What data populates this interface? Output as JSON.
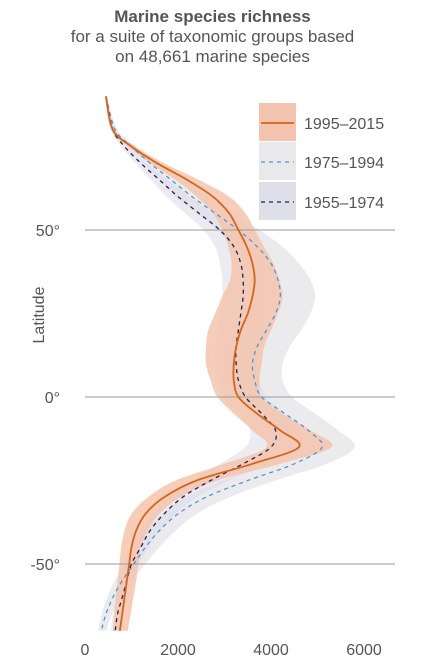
{
  "title": "Marine species richness",
  "subtitle_lines": [
    "for a suite of taxonomic groups based",
    "on 48,661 marine species"
  ],
  "colors": {
    "p1995": "#d4651a",
    "p1995_band": "#f3c4ad",
    "p1975": "#4f95d4",
    "p1975_band": "#e9e9eb",
    "p1955": "#1f2250",
    "p1955_band": "#dcdbe8",
    "grid": "#9a9a9a"
  },
  "chart_data": {
    "type": "line",
    "orientation": "horizontal",
    "title": "Marine species richness",
    "ylabel": "Latitude",
    "xlabel": "",
    "xlim": [
      0,
      6800
    ],
    "ylim": [
      -70,
      90
    ],
    "x_ticks": [
      {
        "value": 0,
        "label": "0"
      },
      {
        "value": 2000,
        "label": "2000"
      },
      {
        "value": 4000,
        "label": "4000"
      },
      {
        "value": 6000,
        "label": "6000"
      }
    ],
    "y_ticks": [
      {
        "value": 50,
        "label": "50°"
      },
      {
        "value": 0,
        "label": "0°"
      },
      {
        "value": -50,
        "label": "-50°"
      }
    ],
    "grid": "horizontal at labelled latitudes",
    "legend": "top-right",
    "series": [
      {
        "name": "1995–2015",
        "style": "solid",
        "latitude": [
          90,
          80,
          75,
          70,
          65,
          60,
          55,
          50,
          45,
          40,
          35,
          30,
          25,
          20,
          15,
          10,
          5,
          0,
          -5,
          -10,
          -15,
          -20,
          -25,
          -30,
          -35,
          -40,
          -45,
          -50,
          -55,
          -60,
          -65,
          -70
        ],
        "richness": [
          450,
          600,
          1000,
          1550,
          2200,
          2750,
          3100,
          3300,
          3480,
          3600,
          3650,
          3600,
          3500,
          3350,
          3250,
          3200,
          3200,
          3300,
          3700,
          4200,
          4600,
          3600,
          2400,
          1700,
          1300,
          1100,
          1000,
          950,
          900,
          850,
          800,
          750
        ],
        "band_low": [
          430,
          560,
          920,
          1400,
          1950,
          2400,
          2750,
          2950,
          3080,
          3150,
          3120,
          2950,
          2800,
          2650,
          2600,
          2600,
          2700,
          2850,
          3200,
          3600,
          3900,
          3000,
          1950,
          1350,
          1000,
          850,
          780,
          740,
          700,
          660,
          630,
          600
        ],
        "band_high": [
          470,
          640,
          1080,
          1700,
          2450,
          3100,
          3450,
          3650,
          3850,
          4050,
          4180,
          4250,
          4150,
          4000,
          3850,
          3800,
          3750,
          3800,
          4250,
          4850,
          5300,
          4200,
          2850,
          2050,
          1600,
          1350,
          1200,
          1150,
          1100,
          1040,
          980,
          920
        ]
      },
      {
        "name": "1975–1994",
        "style": "dashed",
        "latitude": [
          90,
          80,
          75,
          70,
          65,
          60,
          55,
          50,
          45,
          40,
          35,
          30,
          25,
          20,
          15,
          10,
          5,
          0,
          -5,
          -10,
          -15,
          -20,
          -25,
          -30,
          -35,
          -40,
          -45,
          -50,
          -55,
          -60,
          -65,
          -70
        ],
        "richness": [
          450,
          650,
          1000,
          1400,
          1850,
          2300,
          2800,
          3300,
          3700,
          4000,
          4150,
          4200,
          4100,
          3900,
          3700,
          3600,
          3650,
          3800,
          4300,
          4800,
          5100,
          4500,
          3500,
          2600,
          2000,
          1600,
          1300,
          1050,
          800,
          600,
          450,
          350
        ],
        "band_low": [
          430,
          600,
          900,
          1250,
          1600,
          1950,
          2400,
          2850,
          3200,
          3450,
          3550,
          3550,
          3450,
          3250,
          3100,
          3050,
          3100,
          3250,
          3700,
          4150,
          4400,
          3850,
          2950,
          2150,
          1650,
          1300,
          1050,
          850,
          640,
          480,
          360,
          280
        ],
        "band_high": [
          470,
          700,
          1100,
          1550,
          2100,
          2650,
          3200,
          3750,
          4250,
          4600,
          4850,
          4950,
          4850,
          4650,
          4400,
          4250,
          4250,
          4450,
          4950,
          5450,
          5800,
          5200,
          4100,
          3100,
          2400,
          1950,
          1600,
          1300,
          1000,
          760,
          580,
          460
        ]
      },
      {
        "name": "1955–1974",
        "style": "dashed",
        "latitude": [
          90,
          80,
          75,
          70,
          65,
          60,
          55,
          50,
          45,
          40,
          35,
          30,
          25,
          20,
          15,
          10,
          5,
          0,
          -5,
          -10,
          -15,
          -20,
          -25,
          -30,
          -35,
          -40,
          -45,
          -50,
          -55,
          -60,
          -65,
          -70
        ],
        "richness": [
          450,
          600,
          850,
          1200,
          1600,
          2000,
          2450,
          2900,
          3200,
          3350,
          3400,
          3400,
          3350,
          3300,
          3250,
          3250,
          3300,
          3450,
          3800,
          4100,
          4000,
          3400,
          2700,
          2100,
          1700,
          1400,
          1200,
          1000,
          900,
          800,
          700,
          650
        ],
        "band_low": [
          430,
          560,
          780,
          1080,
          1420,
          1750,
          2150,
          2550,
          2800,
          2900,
          2950,
          2950,
          2900,
          2850,
          2800,
          2800,
          2850,
          3000,
          3300,
          3550,
          3450,
          2900,
          2300,
          1800,
          1450,
          1200,
          1020,
          850,
          760,
          680,
          600,
          560
        ],
        "band_high": [
          470,
          640,
          920,
          1320,
          1780,
          2250,
          2750,
          3250,
          3600,
          3800,
          3850,
          3850,
          3800,
          3750,
          3700,
          3700,
          3750,
          3900,
          4300,
          4650,
          4550,
          3900,
          3100,
          2400,
          1950,
          1600,
          1380,
          1150,
          1040,
          920,
          800,
          740
        ]
      }
    ]
  }
}
